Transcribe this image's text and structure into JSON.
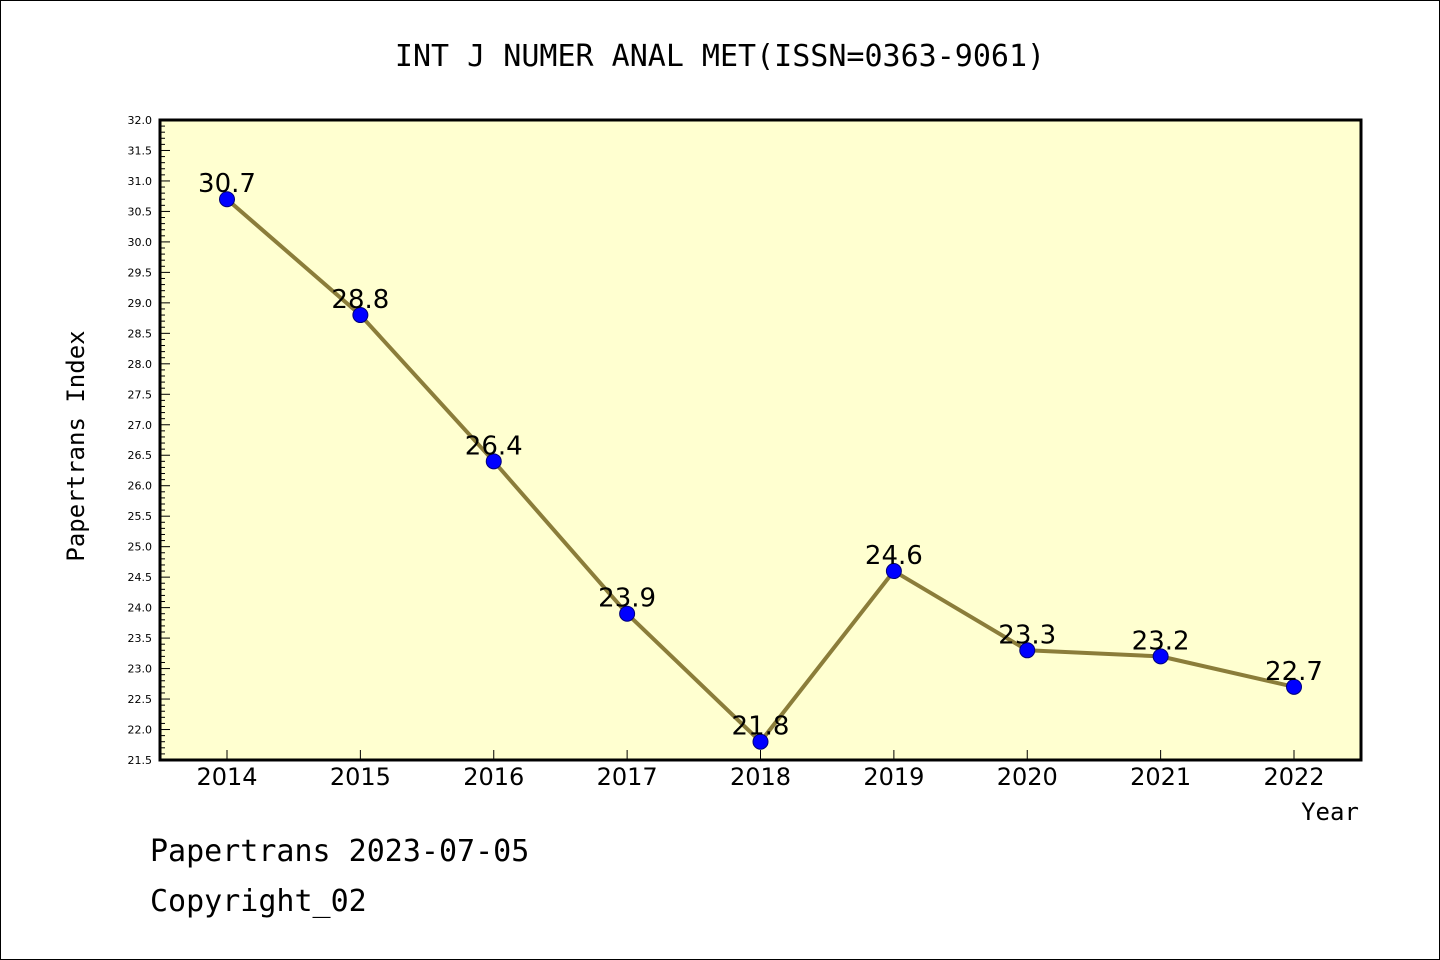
{
  "chart_data": {
    "type": "line",
    "title": "INT J NUMER ANAL MET(ISSN=0363-9061)",
    "xlabel": "Year",
    "ylabel": "Papertrans Index",
    "categories": [
      "2014",
      "2015",
      "2016",
      "2017",
      "2018",
      "2019",
      "2020",
      "2021",
      "2022"
    ],
    "values": [
      30.7,
      28.8,
      26.4,
      23.9,
      21.8,
      24.6,
      23.3,
      23.2,
      22.7
    ],
    "data_labels": [
      "30.7",
      "28.8",
      "26.4",
      "23.9",
      "21.8",
      "24.6",
      "23.3",
      "23.2",
      "22.7"
    ],
    "ylim": [
      21.5,
      32.0
    ],
    "yticks": [
      "21.5",
      "22.0",
      "22.5",
      "23.0",
      "23.5",
      "24.0",
      "24.5",
      "25.0",
      "25.5",
      "26.0",
      "26.5",
      "27.0",
      "27.5",
      "28.0",
      "28.5",
      "29.0",
      "29.5",
      "30.0",
      "30.5",
      "31.0",
      "31.5",
      "32.0"
    ],
    "grid": false,
    "colors": {
      "plot_background": "#ffffd0",
      "line": "#8b7d3a",
      "marker": "#0000ff"
    }
  },
  "footer": {
    "line1": "Papertrans 2023-07-05",
    "line2": "Copyright_02"
  }
}
